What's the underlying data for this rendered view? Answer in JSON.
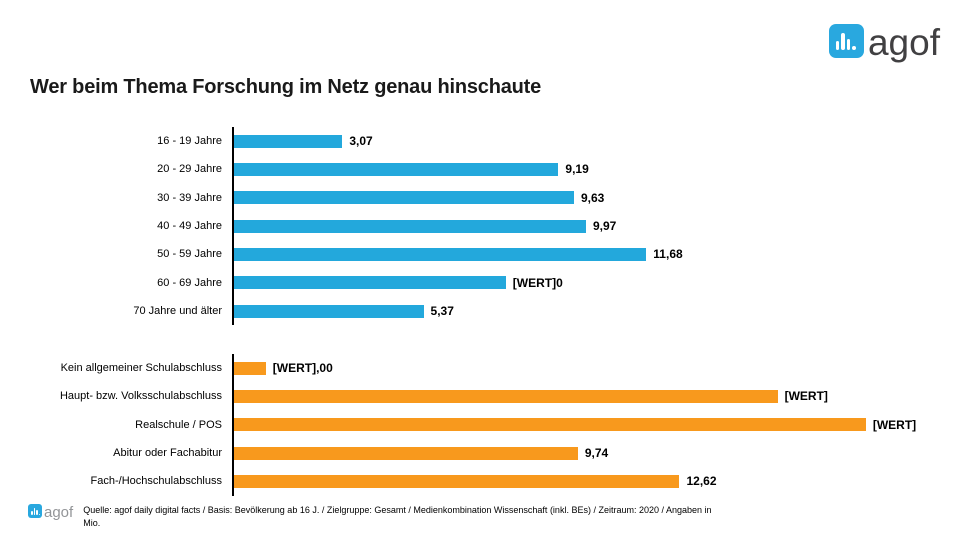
{
  "logo": {
    "word": "agof",
    "badge_color": "#29A8DF",
    "icon": "bar-chart-icon"
  },
  "title": "Wer beim Thema Forschung im Netz genau hinschaute",
  "chart_data": {
    "type": "bar",
    "orientation": "horizontal",
    "title": "Wer beim Thema Forschung im Netz genau hinschaute",
    "xlabel": "",
    "ylabel": "",
    "unit": "Mio.",
    "xlim": [
      0,
      20
    ],
    "grid": false,
    "legend": "none",
    "groups": [
      {
        "name": "age",
        "color": "#23A8DC",
        "bars": [
          {
            "label": "16 - 19 Jahre",
            "value": 3.07,
            "value_label": "3,07"
          },
          {
            "label": "20 - 29 Jahre",
            "value": 9.19,
            "value_label": "9,19"
          },
          {
            "label": "30 - 39 Jahre",
            "value": 9.63,
            "value_label": "9,63"
          },
          {
            "label": "40 - 49 Jahre",
            "value": 9.97,
            "value_label": "9,97"
          },
          {
            "label": "50 - 59 Jahre",
            "value": 11.68,
            "value_label": "11,68"
          },
          {
            "label": "60 - 69 Jahre",
            "value": 7.7,
            "value_label": "[WERT]0"
          },
          {
            "label": "70 Jahre und älter",
            "value": 5.37,
            "value_label": "5,37"
          }
        ]
      },
      {
        "name": "edu",
        "color": "#F8991D",
        "bars": [
          {
            "label": "Kein allgemeiner Schulabschluss",
            "value": 0.9,
            "value_label": "[WERT],00"
          },
          {
            "label": "Haupt- bzw. Volksschulabschluss",
            "value": 15.4,
            "value_label": "[WERT]"
          },
          {
            "label": "Realschule / POS",
            "value": 17.9,
            "value_label": "[WERT]"
          },
          {
            "label": "Abitur oder Fachabitur",
            "value": 9.74,
            "value_label": "9,74"
          },
          {
            "label": "Fach-/Hochschulabschluss",
            "value": 12.62,
            "value_label": "12,62"
          }
        ]
      }
    ]
  },
  "footer": {
    "logo_word": "agof",
    "source_line1": "Quelle: agof daily digital facts / Basis: Bevölkerung ab 16 J. / Zielgruppe: Gesamt / Medienkombination Wissenschaft (inkl. BEs) / Zeitraum: 2020 / Angaben in",
    "source_line2": "Mio."
  }
}
